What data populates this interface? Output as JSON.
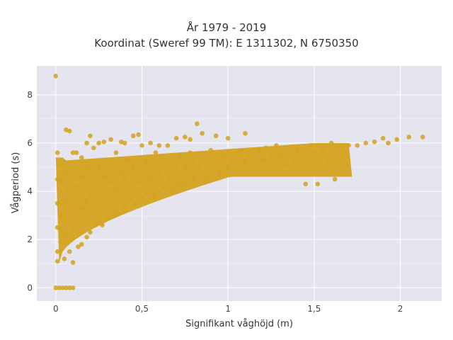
{
  "chart_data": {
    "type": "scatter",
    "title_line1": "År 1979 - 2019",
    "title_line2": "Koordinat (Sweref 99 TM): E 1311302, N 6750350",
    "xlabel": "Signifikant våghöjd (m)",
    "ylabel": "Vågperiod (s)",
    "xlim": [
      -0.11,
      2.24
    ],
    "ylim": [
      -0.55,
      9.2
    ],
    "x_ticks": [
      0,
      0.5,
      1,
      1.5,
      2
    ],
    "x_tick_labels": [
      "0",
      "0,5",
      "1",
      "1,5",
      "2"
    ],
    "y_ticks": [
      0,
      2,
      4,
      6,
      8
    ],
    "y_tick_labels": [
      "0",
      "2",
      "4",
      "6",
      "8"
    ],
    "grid": true,
    "marker_color": "#D4A21E",
    "plot_background": "#E5E5EF",
    "points": [
      [
        0,
        8.78
      ],
      [
        0,
        0
      ],
      [
        0.02,
        0
      ],
      [
        0.04,
        0
      ],
      [
        0.06,
        0
      ],
      [
        0.08,
        0
      ],
      [
        0.1,
        0
      ],
      [
        0.01,
        5.6
      ],
      [
        0.02,
        5.1
      ],
      [
        0.01,
        4.5
      ],
      [
        0.01,
        3.5
      ],
      [
        0.01,
        2.5
      ],
      [
        0.01,
        1.5
      ],
      [
        0.01,
        1.1
      ],
      [
        0.03,
        4.4
      ],
      [
        0.03,
        3.0
      ],
      [
        0.03,
        1.9
      ],
      [
        0.05,
        4.8
      ],
      [
        0.05,
        3.6
      ],
      [
        0.05,
        2.2
      ],
      [
        0.05,
        1.2
      ],
      [
        0.06,
        6.55
      ],
      [
        0.08,
        6.5
      ],
      [
        0.07,
        4.0
      ],
      [
        0.07,
        2.8
      ],
      [
        0.08,
        1.5
      ],
      [
        0.1,
        5.6
      ],
      [
        0.1,
        3.9
      ],
      [
        0.1,
        2.4
      ],
      [
        0.1,
        1.05
      ],
      [
        0.12,
        5.6
      ],
      [
        0.12,
        4.2
      ],
      [
        0.13,
        3.0
      ],
      [
        0.13,
        1.7
      ],
      [
        0.15,
        5.4
      ],
      [
        0.15,
        4.6
      ],
      [
        0.15,
        3.3
      ],
      [
        0.15,
        1.8
      ],
      [
        0.18,
        6.0
      ],
      [
        0.18,
        5.0
      ],
      [
        0.18,
        3.6
      ],
      [
        0.18,
        2.1
      ],
      [
        0.2,
        6.3
      ],
      [
        0.2,
        4.9
      ],
      [
        0.2,
        3.8
      ],
      [
        0.2,
        2.3
      ],
      [
        0.22,
        5.8
      ],
      [
        0.23,
        4.4
      ],
      [
        0.23,
        2.6
      ],
      [
        0.25,
        6.0
      ],
      [
        0.25,
        5.0
      ],
      [
        0.26,
        3.5
      ],
      [
        0.27,
        2.6
      ],
      [
        0.28,
        6.05
      ],
      [
        0.28,
        4.6
      ],
      [
        0.3,
        5.3
      ],
      [
        0.3,
        3.9
      ],
      [
        0.3,
        2.9
      ],
      [
        0.32,
        6.15
      ],
      [
        0.32,
        4.4
      ],
      [
        0.33,
        3.2
      ],
      [
        0.35,
        5.6
      ],
      [
        0.35,
        4.1
      ],
      [
        0.36,
        3.1
      ],
      [
        0.38,
        6.05
      ],
      [
        0.38,
        4.8
      ],
      [
        0.4,
        6.0
      ],
      [
        0.4,
        4.5
      ],
      [
        0.4,
        3.4
      ],
      [
        0.42,
        5.3
      ],
      [
        0.43,
        3.7
      ],
      [
        0.45,
        6.3
      ],
      [
        0.45,
        5.0
      ],
      [
        0.46,
        3.5
      ],
      [
        0.48,
        6.35
      ],
      [
        0.48,
        4.4
      ],
      [
        0.5,
        5.9
      ],
      [
        0.5,
        4.7
      ],
      [
        0.5,
        3.7
      ],
      [
        0.52,
        5.2
      ],
      [
        0.53,
        3.9
      ],
      [
        0.55,
        6.0
      ],
      [
        0.55,
        4.5
      ],
      [
        0.57,
        3.8
      ],
      [
        0.58,
        5.6
      ],
      [
        0.6,
        5.9
      ],
      [
        0.6,
        4.7
      ],
      [
        0.6,
        4.0
      ],
      [
        0.63,
        5.3
      ],
      [
        0.63,
        4.2
      ],
      [
        0.65,
        5.9
      ],
      [
        0.66,
        4.5
      ],
      [
        0.67,
        4.0
      ],
      [
        0.7,
        6.2
      ],
      [
        0.7,
        5.0
      ],
      [
        0.7,
        4.2
      ],
      [
        0.72,
        5.5
      ],
      [
        0.73,
        4.3
      ],
      [
        0.75,
        6.25
      ],
      [
        0.75,
        5.0
      ],
      [
        0.76,
        4.4
      ],
      [
        0.78,
        5.6
      ],
      [
        0.78,
        6.15
      ],
      [
        0.8,
        5.2
      ],
      [
        0.8,
        4.5
      ],
      [
        0.82,
        6.8
      ],
      [
        0.83,
        5.0
      ],
      [
        0.85,
        6.4
      ],
      [
        0.86,
        5.3
      ],
      [
        0.87,
        4.5
      ],
      [
        0.9,
        5.7
      ],
      [
        0.9,
        4.7
      ],
      [
        0.93,
        6.3
      ],
      [
        0.93,
        5.1
      ],
      [
        0.95,
        4.8
      ],
      [
        0.97,
        5.5
      ],
      [
        1.0,
        6.2
      ],
      [
        1.0,
        5.0
      ],
      [
        1.02,
        5.3
      ],
      [
        1.05,
        4.9
      ],
      [
        1.05,
        5.6
      ],
      [
        1.08,
        5.7
      ],
      [
        1.1,
        6.4
      ],
      [
        1.1,
        5.2
      ],
      [
        1.12,
        5.5
      ],
      [
        1.15,
        5.1
      ],
      [
        1.18,
        5.7
      ],
      [
        1.2,
        5.3
      ],
      [
        1.22,
        5.8
      ],
      [
        1.25,
        5.4
      ],
      [
        1.28,
        5.9
      ],
      [
        1.3,
        5.5
      ],
      [
        1.33,
        5.1
      ],
      [
        1.35,
        5.6
      ],
      [
        1.38,
        5.2
      ],
      [
        1.4,
        5.7
      ],
      [
        1.42,
        5.4
      ],
      [
        1.45,
        4.3
      ],
      [
        1.48,
        5.9
      ],
      [
        1.5,
        5.6
      ],
      [
        1.52,
        4.3
      ],
      [
        1.55,
        5.7
      ],
      [
        1.58,
        5.3
      ],
      [
        1.6,
        6.0
      ],
      [
        1.62,
        4.5
      ],
      [
        1.65,
        5.8
      ],
      [
        1.7,
        5.9
      ],
      [
        1.75,
        5.9
      ],
      [
        1.8,
        6.0
      ],
      [
        1.85,
        6.05
      ],
      [
        1.9,
        6.2
      ],
      [
        1.93,
        6.0
      ],
      [
        1.98,
        6.15
      ],
      [
        2.05,
        6.25
      ],
      [
        2.13,
        6.25
      ]
    ]
  }
}
